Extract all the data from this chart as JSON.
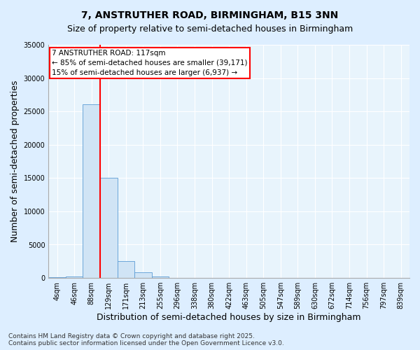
{
  "title": "7, ANSTRUTHER ROAD, BIRMINGHAM, B15 3NN",
  "subtitle": "Size of property relative to semi-detached houses in Birmingham",
  "xlabel": "Distribution of semi-detached houses by size in Birmingham",
  "ylabel": "Number of semi-detached properties",
  "bin_labels": [
    "4sqm",
    "46sqm",
    "88sqm",
    "129sqm",
    "171sqm",
    "213sqm",
    "255sqm",
    "296sqm",
    "338sqm",
    "380sqm",
    "422sqm",
    "463sqm",
    "505sqm",
    "547sqm",
    "589sqm",
    "630sqm",
    "672sqm",
    "714sqm",
    "756sqm",
    "797sqm",
    "839sqm"
  ],
  "bin_values": [
    80,
    200,
    26100,
    15000,
    2500,
    800,
    200,
    30,
    0,
    0,
    0,
    0,
    0,
    0,
    0,
    0,
    0,
    0,
    0,
    0,
    0
  ],
  "bar_color": "#d0e4f5",
  "bar_edge_color": "#5b9bd5",
  "annotation_text_line1": "7 ANSTRUTHER ROAD: 117sqm",
  "annotation_text_line2": "← 85% of semi-detached houses are smaller (39,171)",
  "annotation_text_line3": "15% of semi-detached houses are larger (6,937) →",
  "ylim": [
    0,
    35000
  ],
  "yticks": [
    0,
    5000,
    10000,
    15000,
    20000,
    25000,
    30000,
    35000
  ],
  "red_line_bin": 2.5,
  "footer_line1": "Contains HM Land Registry data © Crown copyright and database right 2025.",
  "footer_line2": "Contains public sector information licensed under the Open Government Licence v3.0.",
  "bg_color": "#ddeeff",
  "plot_bg_color": "#e8f4fc",
  "grid_color": "#ffffff",
  "title_fontsize": 10,
  "subtitle_fontsize": 9,
  "axis_label_fontsize": 9,
  "tick_fontsize": 7,
  "footer_fontsize": 6.5
}
